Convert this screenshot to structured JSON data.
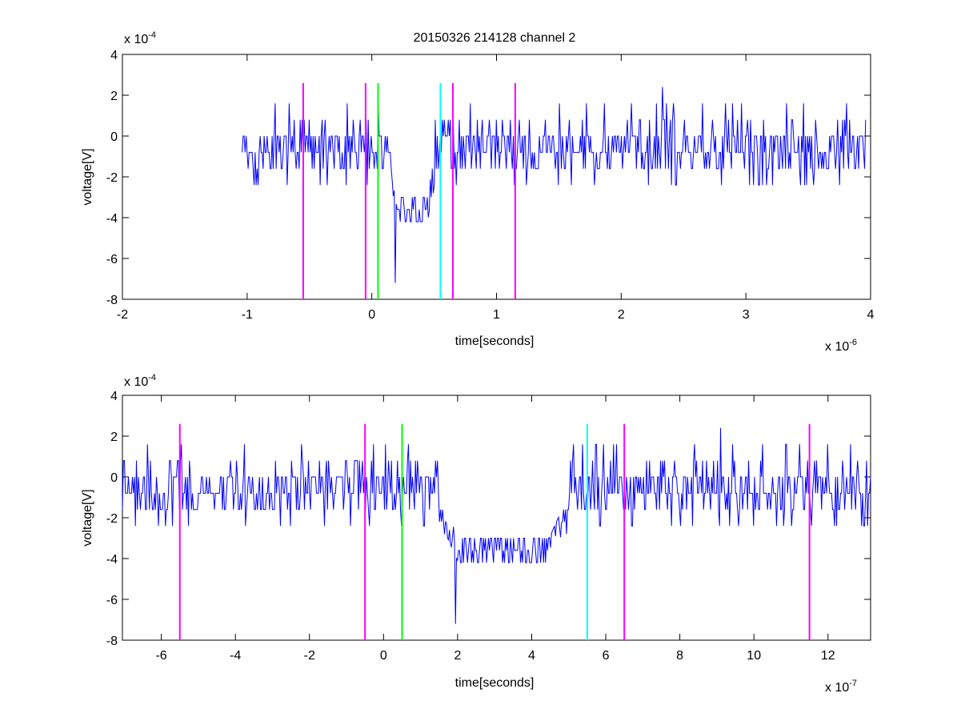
{
  "title": "20150326 214128 channel 2",
  "chart_data": [
    {
      "type": "line",
      "panel": "top",
      "title": "20150326 214128 channel 2",
      "xlabel": "time[seconds]",
      "ylabel": "voltage[V]",
      "x_multiplier": "x 10",
      "x_exponent": "-6",
      "y_multiplier": "x 10",
      "y_exponent": "-4",
      "xlim": [
        -2,
        4
      ],
      "ylim": [
        -8,
        4
      ],
      "xticks": [
        -2,
        -1,
        0,
        1,
        2,
        3,
        4
      ],
      "yticks": [
        -8,
        -6,
        -4,
        -2,
        0,
        2,
        4
      ],
      "xtick_labels": [
        "-2",
        "-1",
        "0",
        "1",
        "2",
        "3",
        "4"
      ],
      "ytick_labels": [
        "-8",
        "-6",
        "-4",
        "-2",
        "0",
        "2",
        "4"
      ],
      "signal": {
        "color": "#0000ff",
        "x_start": -1.04,
        "x_end": 3.96,
        "seed": 20150326,
        "baseline": -0.9,
        "noise_levels": [
          -2.4,
          -1.6,
          -0.8,
          0.0,
          0.8,
          1.6
        ],
        "dip": {
          "start": 0.15,
          "end": 0.5,
          "level": -3.6
        },
        "min_point": {
          "x": 0.19,
          "y": -7.2
        },
        "max_point": {
          "x": 2.33,
          "y": 2.4
        }
      },
      "markers": [
        {
          "x": -0.55,
          "color": "#ff00ff"
        },
        {
          "x": -0.05,
          "color": "#ff00ff"
        },
        {
          "x": 0.05,
          "color": "#00ff00"
        },
        {
          "x": 0.55,
          "color": "#00ffff"
        },
        {
          "x": 0.65,
          "color": "#ff00ff"
        },
        {
          "x": 1.15,
          "color": "#ff00ff"
        }
      ],
      "marker_top": 2.6,
      "marker_bottom": -8
    },
    {
      "type": "line",
      "panel": "bottom",
      "xlabel": "time[seconds]",
      "ylabel": "voltage[V]",
      "x_multiplier": "x 10",
      "x_exponent": "-7",
      "y_multiplier": "x 10",
      "y_exponent": "-4",
      "xlim": [
        -7.05,
        13.15
      ],
      "ylim": [
        -8,
        4
      ],
      "xticks": [
        -6,
        -4,
        -2,
        0,
        2,
        4,
        6,
        8,
        10,
        12
      ],
      "yticks": [
        -8,
        -6,
        -4,
        -2,
        0,
        2,
        4
      ],
      "xtick_labels": [
        "-6",
        "-4",
        "-2",
        "0",
        "2",
        "4",
        "6",
        "8",
        "10",
        "12"
      ],
      "ytick_labels": [
        "-8",
        "-6",
        "-4",
        "-2",
        "0",
        "2",
        "4"
      ],
      "signal": {
        "color": "#0000ff",
        "x_start": -7.05,
        "x_end": 13.15,
        "seed": 7214128,
        "baseline": -0.9,
        "noise_levels": [
          -2.4,
          -1.6,
          -0.8,
          0.0,
          0.8,
          1.6
        ],
        "dip": {
          "start": 1.5,
          "end": 5.0,
          "level": -3.6
        },
        "min_point": {
          "x": 1.95,
          "y": -7.2
        },
        "max_point": {
          "x": 9.1,
          "y": 2.4
        }
      },
      "markers": [
        {
          "x": -5.5,
          "color": "#ff00ff"
        },
        {
          "x": -0.5,
          "color": "#ff00ff"
        },
        {
          "x": 0.5,
          "color": "#00ff00"
        },
        {
          "x": 5.5,
          "color": "#00ffff"
        },
        {
          "x": 6.5,
          "color": "#ff00ff"
        },
        {
          "x": 11.5,
          "color": "#ff00ff"
        }
      ],
      "marker_top": 2.6,
      "marker_bottom": -8
    }
  ]
}
